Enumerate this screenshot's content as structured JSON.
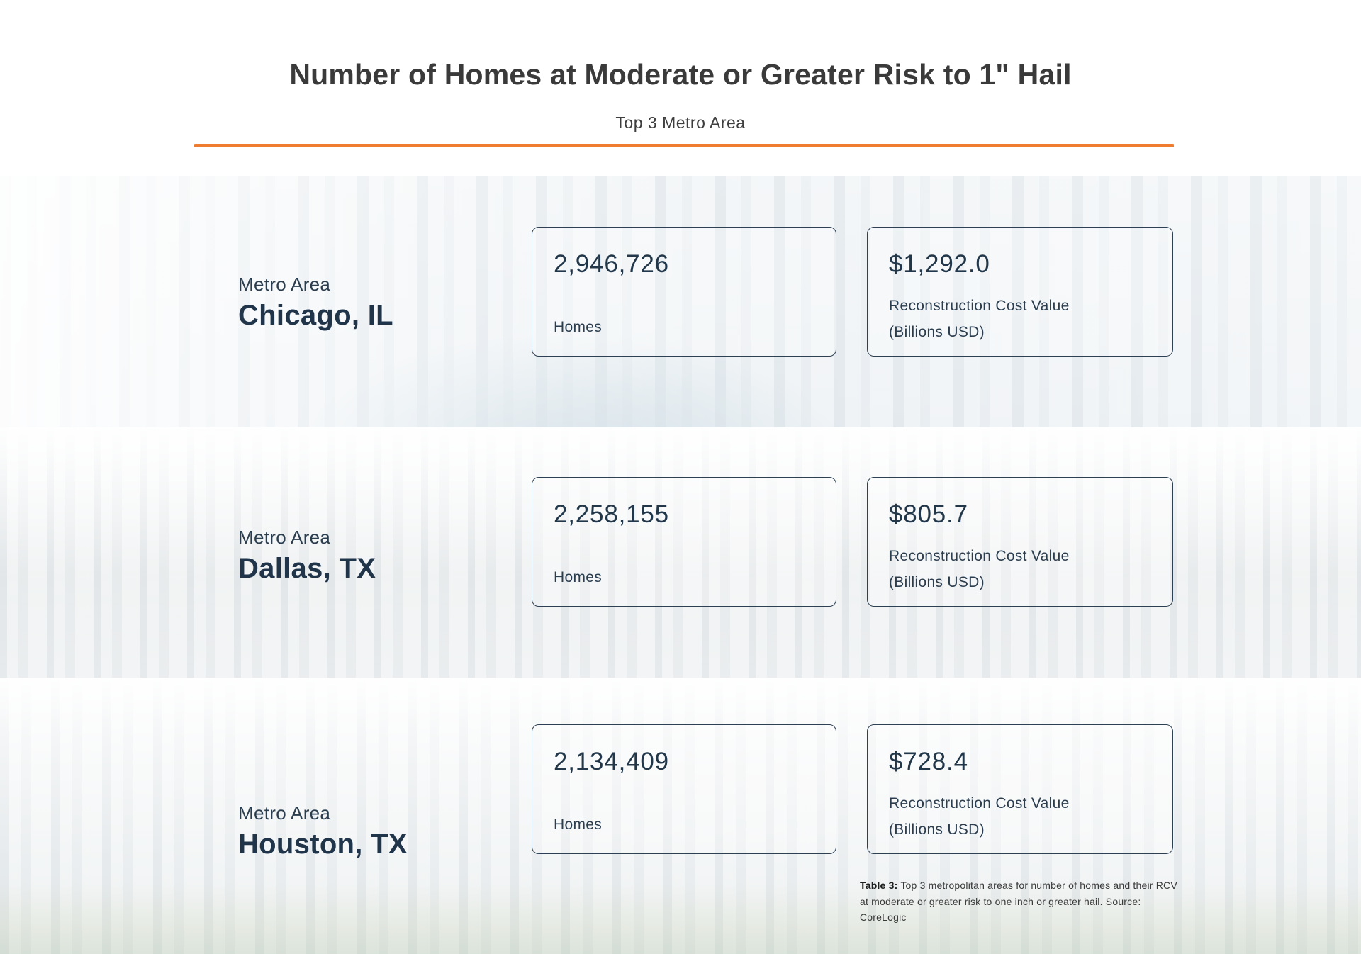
{
  "header": {
    "title": "Number of Homes at Moderate or Greater Risk to 1\" Hail",
    "subtitle": "Top 3 Metro Area"
  },
  "colors": {
    "accent_orange": "#ee7c31",
    "navy_text": "#22384a",
    "title_gray": "#3a3a3a"
  },
  "rows": [
    {
      "metro_label": "Metro Area",
      "metro_name": "Chicago, IL",
      "homes_value": "2,946,726",
      "homes_label": "Homes",
      "rcv_value": "$1,292.0",
      "rcv_label_line1": "Reconstruction Cost Value",
      "rcv_label_line2": "(Billions USD)",
      "background_photo": "chicago-bean-skyline"
    },
    {
      "metro_label": "Metro Area",
      "metro_name": "Dallas, TX",
      "homes_value": "2,258,155",
      "homes_label": "Homes",
      "rcv_value": "$805.7",
      "rcv_label_line1": "Reconstruction Cost Value",
      "rcv_label_line2": "(Billions USD)",
      "background_photo": "dallas-skyline"
    },
    {
      "metro_label": "Metro Area",
      "metro_name": "Houston, TX",
      "homes_value": "2,134,409",
      "homes_label": "Homes",
      "rcv_value": "$728.4",
      "rcv_label_line1": "Reconstruction Cost Value",
      "rcv_label_line2": "(Billions USD)",
      "background_photo": "houston-skyline"
    }
  ],
  "footnote": {
    "label": "Table 3:",
    "text": "Top 3 metropolitan areas for number of homes and their RCV at moderate or greater risk to one inch or greater hail. Source: CoreLogic"
  },
  "chart_data": {
    "type": "table",
    "title": "Number of Homes at Moderate or Greater Risk to 1\" Hail",
    "subtitle": "Top 3 Metro Area",
    "columns": [
      "Metro Area",
      "Homes",
      "Reconstruction Cost Value (Billions USD)"
    ],
    "rows": [
      [
        "Chicago, IL",
        2946726,
        1292.0
      ],
      [
        "Dallas, TX",
        2258155,
        805.7
      ],
      [
        "Houston, TX",
        2134409,
        728.4
      ]
    ],
    "source": "CoreLogic",
    "table_caption": "Table 3: Top 3 metropolitan areas for number of homes and their RCV at moderate or greater risk to one inch or greater hail."
  }
}
